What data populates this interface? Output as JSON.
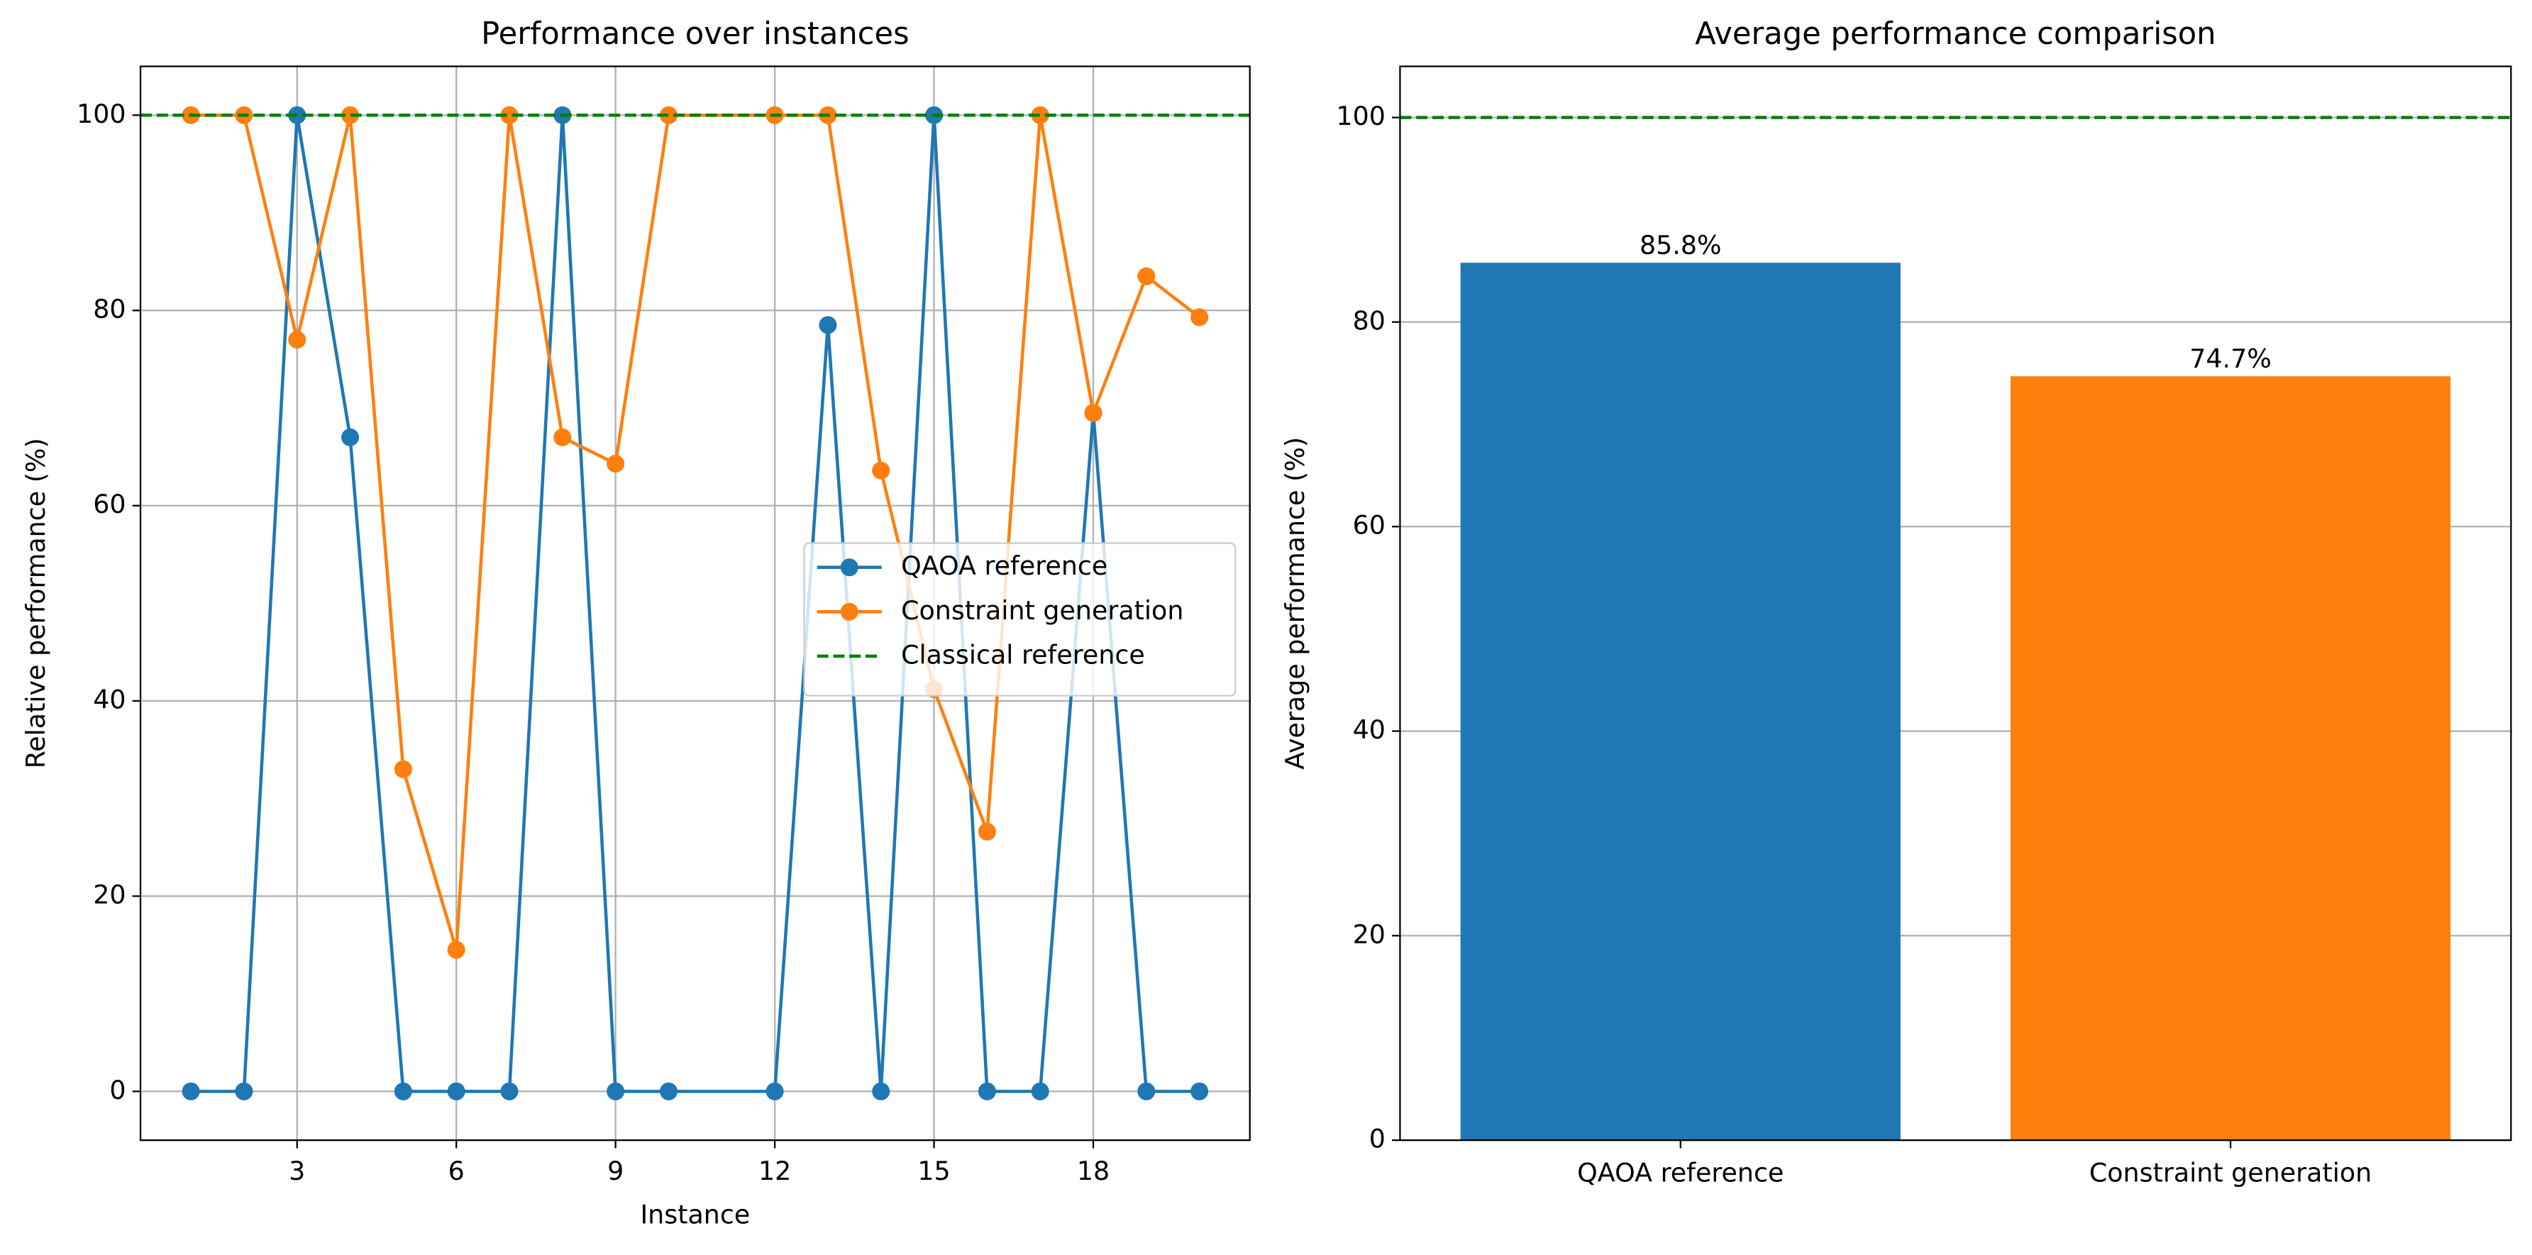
{
  "chart_data": [
    {
      "type": "line",
      "title": "Performance over instances",
      "xlabel": "Instance",
      "ylabel": "Relative performance (%)",
      "x": [
        1,
        2,
        3,
        4,
        5,
        6,
        7,
        8,
        9,
        10,
        12,
        13,
        14,
        15,
        16,
        17,
        18,
        19,
        20
      ],
      "series": [
        {
          "name": "QAOA reference",
          "color": "#1f77b4",
          "values": [
            0,
            0,
            100,
            67,
            0,
            0,
            0,
            100,
            0,
            0,
            0,
            78.5,
            0,
            100,
            0,
            0,
            69.5,
            0,
            0
          ]
        },
        {
          "name": "Constraint generation",
          "color": "#ff7f0e",
          "values": [
            100,
            100,
            77,
            100,
            33,
            14.5,
            100,
            67,
            64.3,
            100,
            100,
            100,
            63.6,
            41.2,
            26.6,
            100,
            69.5,
            83.5,
            79.3
          ]
        }
      ],
      "reference_line": {
        "name": "Classical reference",
        "value": 100,
        "color": "green"
      },
      "xlim": [
        0.05,
        20.95
      ],
      "ylim": [
        -5,
        105
      ],
      "xticks": [
        3,
        6,
        9,
        12,
        15,
        18
      ],
      "yticks": [
        0,
        20,
        40,
        60,
        80,
        100
      ],
      "grid": "both",
      "legend": "center right"
    },
    {
      "type": "bar",
      "title": "Average performance comparison",
      "ylabel": "Average performance (%)",
      "categories": [
        "QAOA reference",
        "Constraint generation"
      ],
      "values": [
        85.8,
        74.7
      ],
      "value_labels": [
        "85.8%",
        "74.7%"
      ],
      "colors": [
        "#1f77b4",
        "#ff7f0e"
      ],
      "reference_line": {
        "value": 100,
        "color": "green"
      },
      "ylim": [
        0,
        105
      ],
      "yticks": [
        0,
        20,
        40,
        60,
        80,
        100
      ],
      "grid": "y"
    }
  ]
}
